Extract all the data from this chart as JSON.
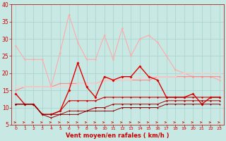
{
  "bg_color": "#c8e8e4",
  "grid_color": "#a8d0cc",
  "xlabel": "Vent moyen/en rafales ( km/h )",
  "ylim": [
    5,
    40
  ],
  "xlim": [
    -0.5,
    23.5
  ],
  "yticks": [
    5,
    10,
    15,
    20,
    25,
    30,
    35,
    40
  ],
  "xticks": [
    0,
    1,
    2,
    3,
    4,
    5,
    6,
    7,
    8,
    9,
    10,
    11,
    12,
    13,
    14,
    15,
    16,
    17,
    18,
    19,
    20,
    21,
    22,
    23
  ],
  "series": [
    {
      "color": "#ffaaaa",
      "lw": 0.8,
      "marker": "o",
      "ms": 1.8,
      "values": [
        28,
        24,
        24,
        24,
        16,
        26,
        37,
        29,
        24,
        24,
        31,
        24,
        33,
        25,
        30,
        31,
        29,
        25,
        21,
        20,
        19,
        19,
        19,
        18
      ]
    },
    {
      "color": "#ff8888",
      "lw": 0.8,
      "marker": "o",
      "ms": 1.5,
      "values": [
        15,
        16,
        16,
        16,
        16,
        17,
        17,
        17,
        17,
        17,
        18,
        18,
        18,
        18,
        18,
        18,
        19,
        19,
        19,
        19,
        19,
        19,
        19,
        19
      ]
    },
    {
      "color": "#ffcccc",
      "lw": 0.7,
      "marker": "o",
      "ms": 1.5,
      "values": [
        16,
        16,
        16,
        16,
        16,
        16,
        16,
        17,
        17,
        17,
        18,
        18,
        18,
        18,
        19,
        19,
        19,
        19,
        19,
        20,
        20,
        20,
        20,
        20
      ]
    },
    {
      "color": "#dd0000",
      "lw": 1.0,
      "marker": "D",
      "ms": 2.0,
      "values": [
        14,
        11,
        11,
        8,
        8,
        9,
        15,
        23,
        16,
        13,
        19,
        18,
        19,
        19,
        22,
        19,
        18,
        13,
        13,
        13,
        14,
        11,
        13,
        13
      ]
    },
    {
      "color": "#cc0000",
      "lw": 0.8,
      "marker": "D",
      "ms": 1.5,
      "values": [
        11,
        11,
        11,
        8,
        8,
        9,
        12,
        12,
        12,
        12,
        13,
        13,
        13,
        13,
        13,
        13,
        13,
        13,
        13,
        13,
        13,
        13,
        13,
        13
      ]
    },
    {
      "color": "#aa0000",
      "lw": 0.7,
      "marker": "D",
      "ms": 1.5,
      "values": [
        11,
        11,
        11,
        8,
        8,
        8,
        9,
        9,
        9,
        10,
        10,
        11,
        11,
        11,
        11,
        11,
        11,
        12,
        12,
        12,
        12,
        12,
        12,
        12
      ]
    },
    {
      "color": "#880000",
      "lw": 0.7,
      "marker": "D",
      "ms": 1.2,
      "values": [
        11,
        11,
        11,
        8,
        7,
        8,
        8,
        8,
        9,
        9,
        9,
        9,
        10,
        10,
        10,
        10,
        10,
        11,
        11,
        11,
        11,
        11,
        11,
        11
      ]
    }
  ]
}
